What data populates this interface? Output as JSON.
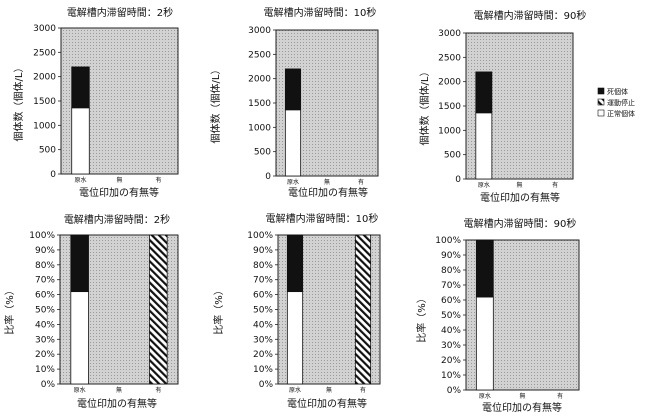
{
  "chart_data": [
    {
      "type": "bar",
      "stacked": true,
      "title": "電解槽内滞留時間：2秒",
      "xlabel": "電位印加の有無等",
      "ylabel": "個体数（個体/L）",
      "categories": [
        "原水",
        "無",
        "有"
      ],
      "ylim": [
        0,
        3000
      ],
      "ticks": [
        "0",
        "500",
        "1000",
        "1500",
        "2000",
        "2500",
        "3000"
      ],
      "series": [
        {
          "name": "正常個体",
          "values": [
            1360,
            0,
            0
          ]
        },
        {
          "name": "運動停止",
          "values": [
            0,
            0,
            0
          ]
        },
        {
          "name": "死個体",
          "values": [
            840,
            0,
            0
          ]
        }
      ],
      "grid": false
    },
    {
      "type": "bar",
      "stacked": true,
      "title": "電解槽内滞留時間：10秒",
      "xlabel": "電位印加の有無等",
      "ylabel": "個体数（個体/L）",
      "categories": [
        "原水",
        "無",
        "有"
      ],
      "ylim": [
        0,
        3000
      ],
      "ticks": [
        "0",
        "500",
        "1000",
        "1500",
        "2000",
        "2500",
        "3000"
      ],
      "series": [
        {
          "name": "正常個体",
          "values": [
            1360,
            0,
            0
          ]
        },
        {
          "name": "運動停止",
          "values": [
            0,
            0,
            0
          ]
        },
        {
          "name": "死個体",
          "values": [
            840,
            0,
            0
          ]
        }
      ],
      "grid": false
    },
    {
      "type": "bar",
      "stacked": true,
      "title": "電解槽内滞留時間：90秒",
      "xlabel": "電位印加の有無等",
      "ylabel": "個体数（個体/L）",
      "categories": [
        "原水",
        "無",
        "有"
      ],
      "ylim": [
        0,
        3000
      ],
      "ticks": [
        "0",
        "500",
        "1000",
        "1500",
        "2000",
        "2500",
        "3000"
      ],
      "series": [
        {
          "name": "正常個体",
          "values": [
            1360,
            0,
            0
          ]
        },
        {
          "name": "運動停止",
          "values": [
            0,
            0,
            0
          ]
        },
        {
          "name": "死個体",
          "values": [
            840,
            0,
            0
          ]
        }
      ],
      "grid": false,
      "legend": {
        "placement": "right",
        "entries": [
          "死個体",
          "運動停止",
          "正常個体"
        ]
      }
    },
    {
      "type": "bar",
      "stacked": true,
      "title": "電解槽内滞留時間：2秒",
      "xlabel": "電位印加の有無等",
      "ylabel": "比率（%）",
      "categories": [
        "原水",
        "無",
        "有"
      ],
      "ylim": [
        0,
        100
      ],
      "ticks": [
        "0%",
        "10%",
        "20%",
        "30%",
        "40%",
        "50%",
        "60%",
        "70%",
        "80%",
        "90%",
        "100%"
      ],
      "series": [
        {
          "name": "正常個体",
          "values": [
            62,
            0,
            0
          ]
        },
        {
          "name": "運動停止",
          "values": [
            0,
            0,
            100
          ]
        },
        {
          "name": "死個体",
          "values": [
            38,
            0,
            0
          ]
        }
      ],
      "grid": false
    },
    {
      "type": "bar",
      "stacked": true,
      "title": "電解槽内滞留時間：10秒",
      "xlabel": "電位印加の有無等",
      "ylabel": "比率（%）",
      "categories": [
        "原水",
        "無",
        "有"
      ],
      "ylim": [
        0,
        100
      ],
      "ticks": [
        "0%",
        "10%",
        "20%",
        "30%",
        "40%",
        "50%",
        "60%",
        "70%",
        "80%",
        "90%",
        "100%"
      ],
      "series": [
        {
          "name": "正常個体",
          "values": [
            62,
            0,
            0
          ]
        },
        {
          "name": "運動停止",
          "values": [
            0,
            0,
            100
          ]
        },
        {
          "name": "死個体",
          "values": [
            38,
            0,
            0
          ]
        }
      ],
      "grid": false
    },
    {
      "type": "bar",
      "stacked": true,
      "title": "電解槽内滞留時間：90秒",
      "xlabel": "電位印加の有無等",
      "ylabel": "比率（%）",
      "categories": [
        "原水",
        "無",
        "有"
      ],
      "ylim": [
        0,
        100
      ],
      "ticks": [
        "0%",
        "10%",
        "20%",
        "30%",
        "40%",
        "50%",
        "60%",
        "70%",
        "80%",
        "90%",
        "100%"
      ],
      "series": [
        {
          "name": "正常個体",
          "values": [
            62,
            0,
            0
          ]
        },
        {
          "name": "運動停止",
          "values": [
            0,
            0,
            0
          ]
        },
        {
          "name": "死個体",
          "values": [
            38,
            0,
            0
          ]
        }
      ],
      "grid": false
    }
  ],
  "colors": {
    "plot_bg": "#cfcfcf",
    "dead": "#111111",
    "stopped_stripe": "#111111",
    "normal": "#ffffff"
  }
}
